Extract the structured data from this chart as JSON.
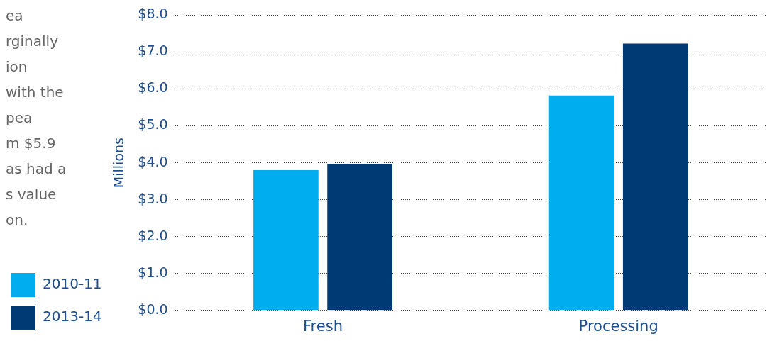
{
  "chart_data": {
    "type": "bar",
    "ylabel": "Millions",
    "categories": [
      "Fresh",
      "Processing"
    ],
    "series": [
      {
        "name": "2010-11",
        "color": "#00aeef",
        "values": [
          3.8,
          5.82
        ]
      },
      {
        "name": "2013-14",
        "color": "#003a75",
        "values": [
          3.97,
          7.23
        ]
      }
    ],
    "ylim": [
      0,
      8
    ],
    "yticks": [
      {
        "value": 0,
        "label": "$0.0"
      },
      {
        "value": 1,
        "label": "$1.0"
      },
      {
        "value": 2,
        "label": "$2.0"
      },
      {
        "value": 3,
        "label": "$3.0"
      },
      {
        "value": 4,
        "label": "$4.0"
      },
      {
        "value": 5,
        "label": "$5.0"
      },
      {
        "value": 6,
        "label": "$6.0"
      },
      {
        "value": 7,
        "label": "$7.0"
      },
      {
        "value": 8,
        "label": "$8.0"
      }
    ],
    "grid": "y",
    "legend": "left",
    "annotations": [
      "ea",
      "rginally",
      "ion",
      "with the",
      "pea",
      "m $5.9",
      "as had a",
      "s value",
      "on."
    ]
  }
}
